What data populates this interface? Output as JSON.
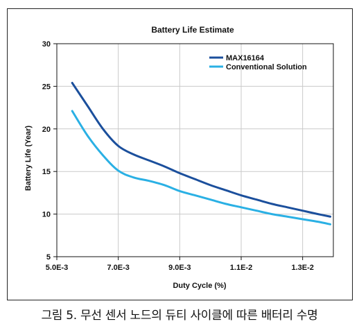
{
  "caption": "그림 5. 무선 센서 노드의 듀티 사이클에 따른 배터리 수명",
  "chart_data": {
    "type": "line",
    "title": "Battery Life Estimate",
    "xlabel": "Duty Cycle (%)",
    "ylabel": "Battery Life (Year)",
    "xlim": [
      0.005,
      0.014
    ],
    "ylim": [
      5,
      30
    ],
    "x_ticks": [
      0.005,
      0.007,
      0.009,
      0.011,
      0.013
    ],
    "x_tick_labels": [
      "5.0E-3",
      "7.0E-3",
      "9.0E-3",
      "1.1E-2",
      "1.3E-2"
    ],
    "y_ticks": [
      5,
      10,
      15,
      20,
      25,
      30
    ],
    "y_tick_labels": [
      "5",
      "10",
      "15",
      "20",
      "25",
      "30"
    ],
    "grid": true,
    "legend_position": "top-right",
    "series": [
      {
        "name": "MAX16164",
        "color": "#1b4f9c",
        "x": [
          0.0055,
          0.006,
          0.0065,
          0.007,
          0.0075,
          0.008,
          0.0085,
          0.009,
          0.0095,
          0.01,
          0.0105,
          0.011,
          0.0115,
          0.012,
          0.0125,
          0.013,
          0.0135,
          0.0139
        ],
        "y": [
          25.4,
          22.7,
          20.0,
          18.0,
          17.0,
          16.3,
          15.6,
          14.8,
          14.1,
          13.4,
          12.8,
          12.2,
          11.7,
          11.2,
          10.8,
          10.4,
          10.0,
          9.7
        ]
      },
      {
        "name": "Conventional Solution",
        "color": "#2ab0e4",
        "x": [
          0.0055,
          0.006,
          0.0065,
          0.007,
          0.0075,
          0.008,
          0.0085,
          0.009,
          0.0095,
          0.01,
          0.0105,
          0.011,
          0.0115,
          0.012,
          0.0125,
          0.013,
          0.0135,
          0.0139
        ],
        "y": [
          22.1,
          19.2,
          16.9,
          15.1,
          14.3,
          13.9,
          13.4,
          12.7,
          12.2,
          11.7,
          11.2,
          10.8,
          10.4,
          10.0,
          9.7,
          9.4,
          9.1,
          8.8
        ]
      }
    ]
  }
}
